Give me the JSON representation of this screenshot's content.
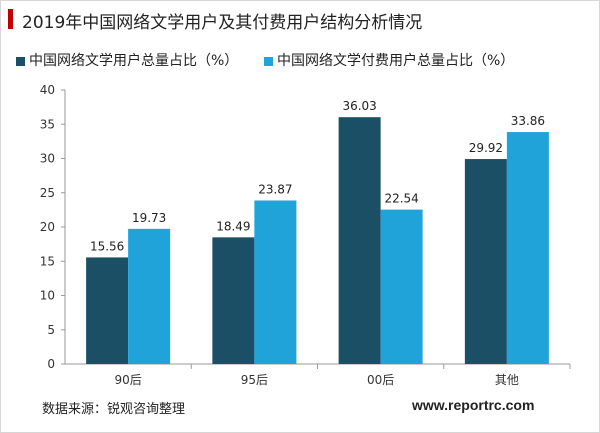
{
  "title": "2019年中国网络文学用户及其付费用户结构分析情况",
  "source": "数据来源：锐观咨询整理",
  "website": "www.reportrc.com",
  "colors": {
    "accent": "#c00000",
    "series1": "#1a4f66",
    "series2": "#1fa3d9"
  },
  "chart_data": {
    "type": "bar",
    "categories": [
      "90后",
      "95后",
      "00后",
      "其他"
    ],
    "series": [
      {
        "name": "中国网络文学用户总量占比（%）",
        "values": [
          15.56,
          18.49,
          36.03,
          29.92
        ]
      },
      {
        "name": "中国网络文学付费用户总量占比（%）",
        "values": [
          19.73,
          23.87,
          22.54,
          33.86
        ]
      }
    ],
    "ylim": [
      0,
      40
    ],
    "yticks": [
      0,
      5,
      10,
      15,
      20,
      25,
      30,
      35,
      40
    ],
    "grid": false,
    "legend_position": "top-left",
    "value_labels": true
  }
}
